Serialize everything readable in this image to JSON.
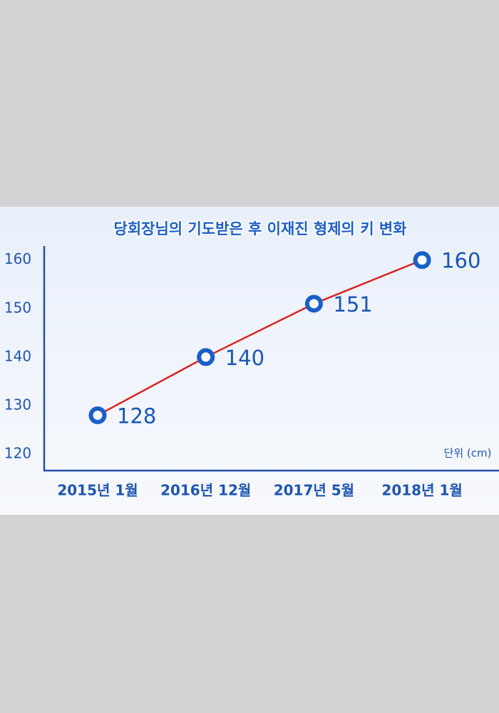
{
  "chart_data": {
    "type": "line",
    "title": "당회장님의 기도받은 후 이재진 형제의 키 변화",
    "unit_label": "단위 (cm)",
    "categories": [
      "2015년 1월",
      "2016년 12월",
      "2017년 5월",
      "2018년 1월"
    ],
    "values": [
      128,
      140,
      151,
      160
    ],
    "color": "#d92323",
    "marker_color": "#1a5fc8",
    "ylim": [
      116.6,
      162.9
    ],
    "yticks": [
      120,
      130,
      140,
      150,
      160
    ],
    "grid": false
  }
}
